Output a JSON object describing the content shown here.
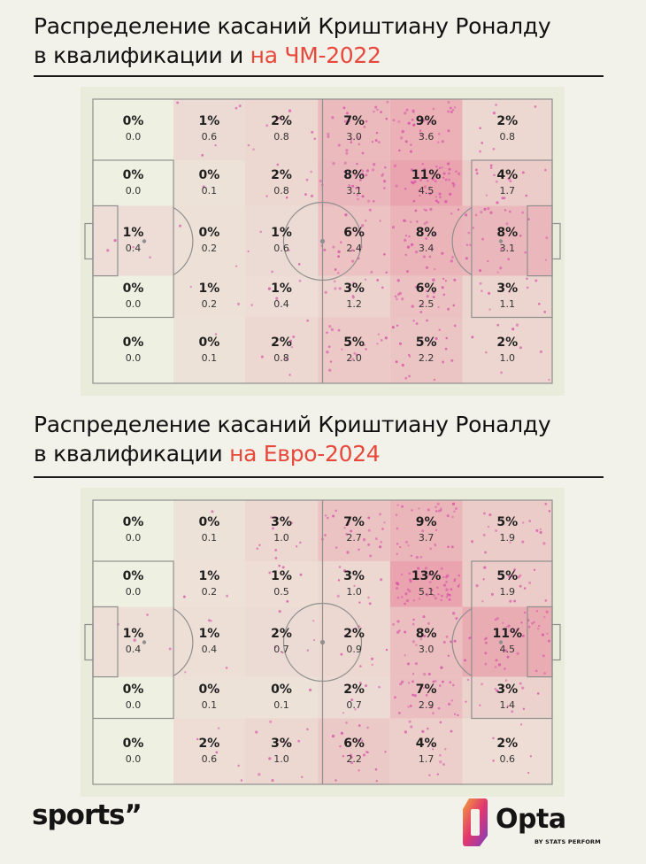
{
  "title1": {
    "line1": "Распределение касаний Криштиану Роналду",
    "line2_prefix": "в квалификации и ",
    "line2_highlight": "на ЧМ-2022"
  },
  "title2": {
    "line1": "Распределение касаний Криштиану Роналду",
    "line2_prefix": "в квалификации ",
    "line2_highlight": "на Евро-2024"
  },
  "colors": {
    "accent": "#e8483c",
    "pitch": "#eef0e2",
    "heat_max": "#e88a9c",
    "dots": "#d64fa8",
    "lines": "#8f8f8f"
  },
  "chart_data": [
    {
      "type": "heatmap",
      "title": "Распределение касаний Криштиану Роналду в квалификации и на ЧМ-2022",
      "rows": 5,
      "cols": 6,
      "pct": [
        [
          "0%",
          "1%",
          "2%",
          "7%",
          "9%",
          "2%"
        ],
        [
          "0%",
          "0%",
          "2%",
          "8%",
          "11%",
          "4%"
        ],
        [
          "1%",
          "0%",
          "1%",
          "6%",
          "8%",
          "8%"
        ],
        [
          "0%",
          "1%",
          "1%",
          "3%",
          "6%",
          "3%"
        ],
        [
          "0%",
          "0%",
          "2%",
          "5%",
          "5%",
          "2%"
        ]
      ],
      "values": [
        [
          0.0,
          0.6,
          0.8,
          3.0,
          3.6,
          0.8
        ],
        [
          0.0,
          0.1,
          0.8,
          3.1,
          4.5,
          1.7
        ],
        [
          0.4,
          0.2,
          0.6,
          2.4,
          3.4,
          3.1
        ],
        [
          0.0,
          0.2,
          0.4,
          1.2,
          2.5,
          1.1
        ],
        [
          0.0,
          0.1,
          0.8,
          2.0,
          2.2,
          1.0
        ]
      ],
      "labels": [
        [
          "0.0",
          "0.6",
          "0.8",
          "3.0",
          "3.6",
          "0.8"
        ],
        [
          "0.0",
          "0.1",
          "0.8",
          "3.1",
          "4.5",
          "1.7"
        ],
        [
          "0.4",
          "0.2",
          "0.6",
          "2.4",
          "3.4",
          "3.1"
        ],
        [
          "0.0",
          "0.2",
          "0.4",
          "1.2",
          "2.5",
          "1.1"
        ],
        [
          "0.0",
          "0.1",
          "0.8",
          "2.0",
          "2.2",
          "1.0"
        ]
      ]
    },
    {
      "type": "heatmap",
      "title": "Распределение касаний Криштиану Роналду в квалификации на Евро-2024",
      "rows": 5,
      "cols": 6,
      "pct": [
        [
          "0%",
          "0%",
          "3%",
          "7%",
          "9%",
          "5%"
        ],
        [
          "0%",
          "1%",
          "1%",
          "3%",
          "13%",
          "5%"
        ],
        [
          "1%",
          "1%",
          "2%",
          "2%",
          "8%",
          "11%"
        ],
        [
          "0%",
          "0%",
          "0%",
          "2%",
          "7%",
          "3%"
        ],
        [
          "0%",
          "2%",
          "3%",
          "6%",
          "4%",
          "2%"
        ]
      ],
      "values": [
        [
          0.0,
          0.1,
          1.0,
          2.7,
          3.7,
          1.9
        ],
        [
          0.0,
          0.2,
          0.5,
          1.0,
          5.1,
          1.9
        ],
        [
          0.4,
          0.4,
          0.7,
          0.9,
          3.0,
          4.5
        ],
        [
          0.0,
          0.1,
          0.1,
          0.7,
          2.9,
          1.4
        ],
        [
          0.0,
          0.6,
          1.0,
          2.2,
          1.7,
          0.6
        ]
      ],
      "labels": [
        [
          "0.0",
          "0.1",
          "1.0",
          "2.7",
          "3.7",
          "1.9"
        ],
        [
          "0.0",
          "0.2",
          "0.5",
          "1.0",
          "5.1",
          "1.9"
        ],
        [
          "0.4",
          "0.4",
          "0.7",
          "0.9",
          "3.0",
          "4.5"
        ],
        [
          "0.0",
          "0.1",
          "0.1",
          "0.7",
          "2.9",
          "1.4"
        ],
        [
          "0.0",
          "0.6",
          "1.0",
          "2.2",
          "1.7",
          "0.6"
        ]
      ]
    }
  ],
  "footer": {
    "brand": "sports”",
    "opta_word": "Opta",
    "opta_sub": "BY STATS PERFORM"
  }
}
